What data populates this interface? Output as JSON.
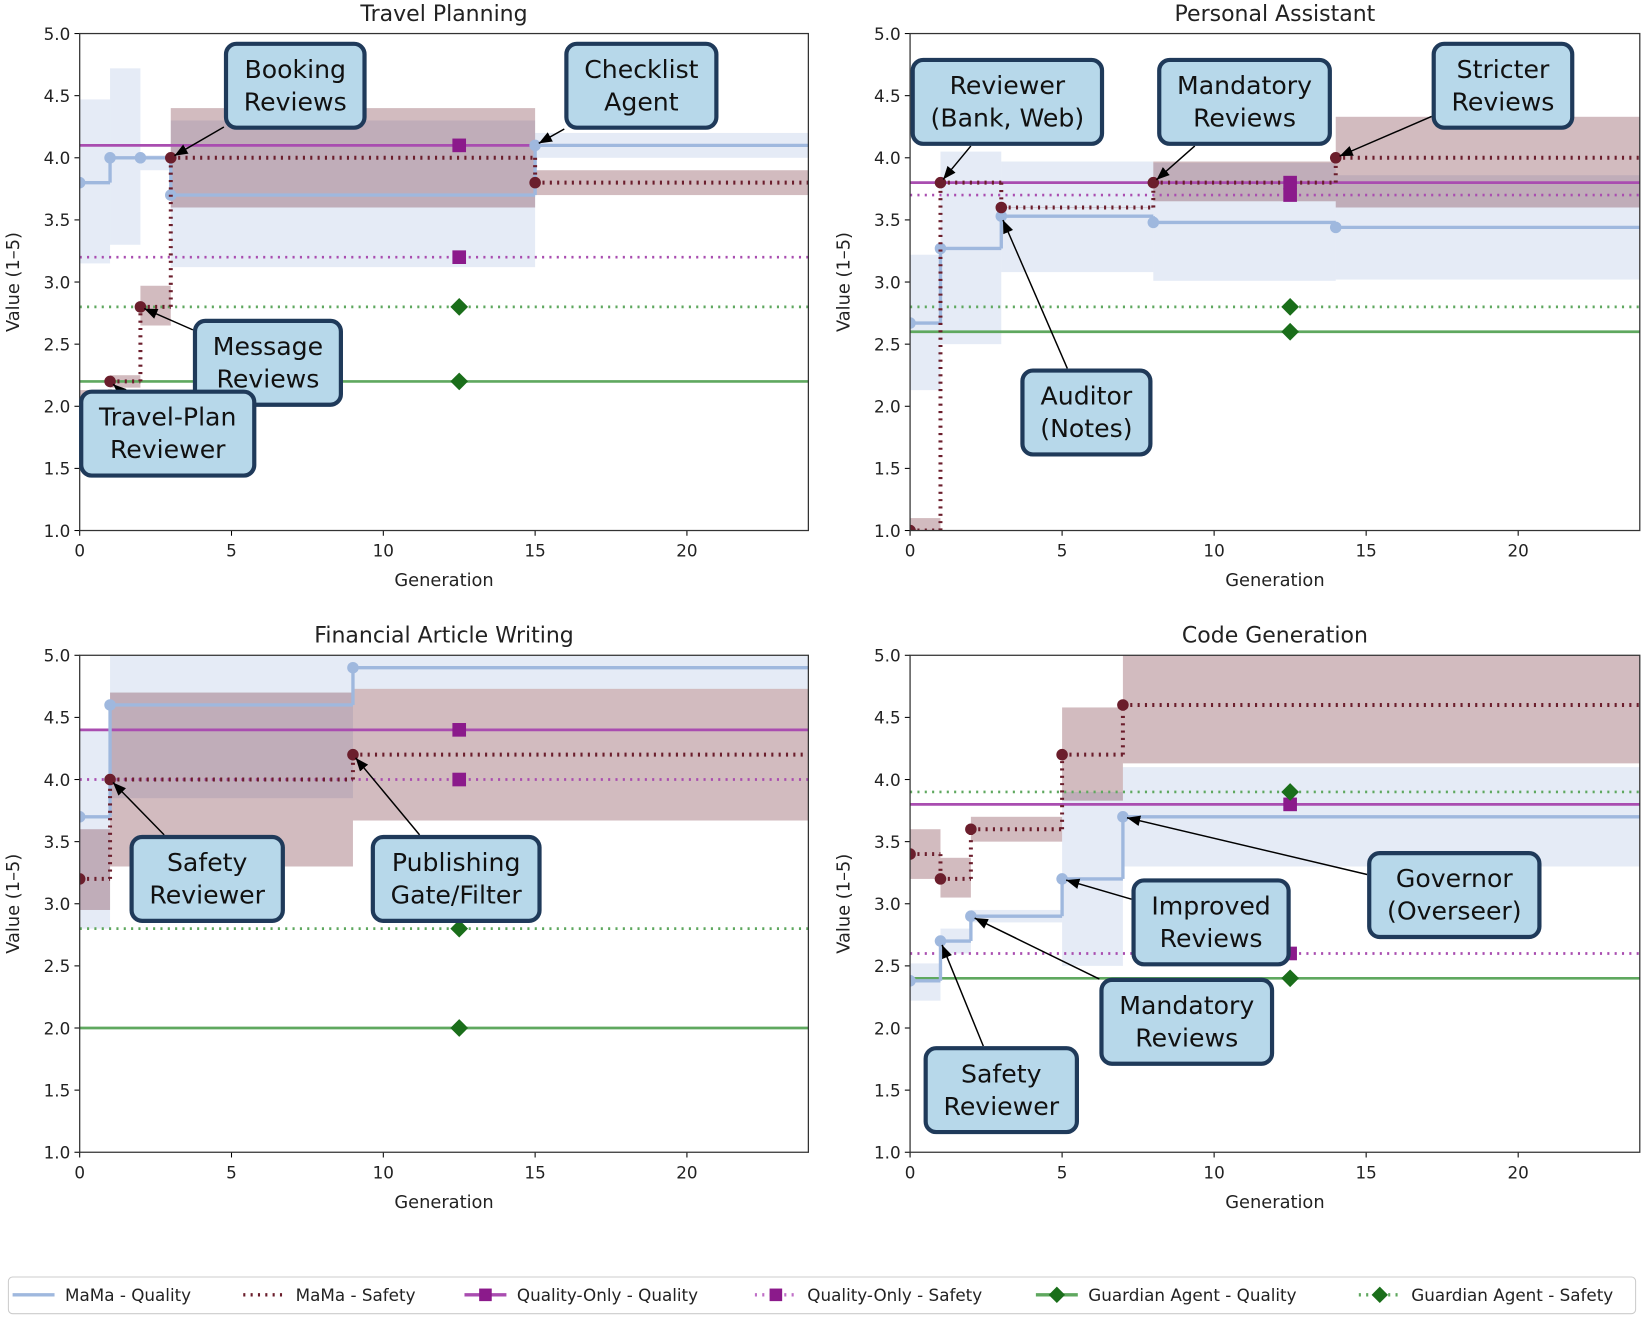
{
  "legend": [
    {
      "name": "MaMa - Quality",
      "color": "#9fb8de",
      "linestyle": "solid"
    },
    {
      "name": "MaMa - Safety",
      "color": "#6b1e2c",
      "linestyle": "dotted"
    },
    {
      "name": "Quality-Only - Quality",
      "color": "#8b1a8b",
      "linestyle": "solid",
      "marker": "square"
    },
    {
      "name": "Quality-Only - Safety",
      "color": "#8b1a8b",
      "linestyle": "dotted",
      "marker": "square"
    },
    {
      "name": "Guardian Agent - Quality",
      "color": "#1a6e1a",
      "linestyle": "solid",
      "marker": "diamond"
    },
    {
      "name": "Guardian Agent - Safety",
      "color": "#1a6e1a",
      "linestyle": "dotted",
      "marker": "diamond"
    }
  ],
  "chart_data": [
    {
      "type": "step",
      "title": "Travel Planning",
      "x_label": "Generation",
      "y_label": "Value (1–5)",
      "xlim": [
        0,
        24
      ],
      "ylim": [
        1,
        5
      ],
      "xticks": [
        0,
        5,
        10,
        15,
        20
      ],
      "yticks": [
        {
          "value": 1,
          "label": "1.0"
        },
        {
          "value": 1.5,
          "label": "1.5"
        },
        {
          "value": 2,
          "label": "2.0"
        },
        {
          "value": 2.5,
          "label": "2.5"
        },
        {
          "value": 3,
          "label": "3.0"
        },
        {
          "value": 3.5,
          "label": "3.5"
        },
        {
          "value": 4,
          "label": "4.0"
        },
        {
          "value": 4.5,
          "label": "4.5"
        },
        {
          "value": 5,
          "label": "5.0"
        }
      ],
      "series": [
        {
          "x": [
            0,
            1,
            2,
            3,
            15
          ],
          "values": [
            3.8,
            4.0,
            4.0,
            3.7,
            4.1
          ],
          "lower": [
            3.15,
            3.3,
            3.9,
            3.12,
            4.0
          ],
          "upper": [
            4.47,
            4.72,
            4.02,
            4.3,
            4.2
          ]
        },
        {
          "x": [
            0,
            1,
            2,
            3,
            15
          ],
          "values": [
            2.0,
            2.2,
            2.8,
            4.0,
            3.8
          ],
          "lower": [
            1.87,
            2.15,
            2.65,
            3.6,
            3.7
          ],
          "upper": [
            2.13,
            2.25,
            2.97,
            4.4,
            3.9
          ]
        },
        {
          "x": [
            12.5
          ],
          "values": [
            4.1
          ]
        },
        {
          "x": [
            12.5
          ],
          "values": [
            3.2
          ]
        },
        {
          "x": [
            12.5
          ],
          "values": [
            2.2
          ]
        },
        {
          "x": [
            12.5
          ],
          "values": [
            2.8
          ]
        }
      ],
      "annotations": [
        {
          "text": [
            "Booking",
            "Reviews"
          ],
          "x": 3,
          "y": 4.0
        },
        {
          "text": [
            "Checklist",
            "Agent"
          ],
          "x": 15,
          "y": 4.1
        },
        {
          "text": [
            "Message",
            "Reviews"
          ],
          "x": 2,
          "y": 2.8
        },
        {
          "text": [
            "Travel-Plan",
            "Reviewer"
          ],
          "x": 1,
          "y": 2.2
        }
      ]
    },
    {
      "type": "step",
      "title": "Personal Assistant",
      "x_label": "Generation",
      "y_label": "Value (1–5)",
      "xlim": [
        0,
        24
      ],
      "ylim": [
        1,
        5
      ],
      "xticks": [
        0,
        5,
        10,
        15,
        20
      ],
      "yticks": [
        {
          "value": 1,
          "label": "1.0"
        },
        {
          "value": 1.5,
          "label": "1.5"
        },
        {
          "value": 2,
          "label": "2.0"
        },
        {
          "value": 2.5,
          "label": "2.5"
        },
        {
          "value": 3,
          "label": "3.0"
        },
        {
          "value": 3.5,
          "label": "3.5"
        },
        {
          "value": 4,
          "label": "4.0"
        },
        {
          "value": 4.5,
          "label": "4.5"
        },
        {
          "value": 5,
          "label": "5.0"
        }
      ],
      "series": [
        {
          "x": [
            0,
            1,
            3,
            8,
            14
          ],
          "values": [
            2.67,
            3.27,
            3.53,
            3.48,
            3.44
          ],
          "lower": [
            2.13,
            2.5,
            3.08,
            3.01,
            3.02
          ],
          "upper": [
            3.22,
            4.05,
            3.97,
            3.96,
            3.86
          ]
        },
        {
          "x": [
            0,
            1,
            3,
            8,
            14
          ],
          "values": [
            1.0,
            3.8,
            3.6,
            3.8,
            4.0
          ],
          "lower": [
            1.0,
            3.8,
            3.6,
            3.65,
            3.6
          ],
          "upper": [
            1.1,
            3.8,
            3.6,
            3.97,
            4.33
          ]
        },
        {
          "x": [
            12.5
          ],
          "values": [
            3.8
          ]
        },
        {
          "x": [
            12.5
          ],
          "values": [
            3.7
          ]
        },
        {
          "x": [
            12.5
          ],
          "values": [
            2.6
          ]
        },
        {
          "x": [
            12.5
          ],
          "values": [
            2.8
          ]
        }
      ],
      "annotations": [
        {
          "text": [
            "Reviewer",
            "(Bank, Web)"
          ],
          "x": 1,
          "y": 3.8
        },
        {
          "text": [
            "Mandatory",
            "Reviews"
          ],
          "x": 8,
          "y": 3.8
        },
        {
          "text": [
            "Stricter",
            "Reviews"
          ],
          "x": 14,
          "y": 4.0
        },
        {
          "text": [
            "Auditor",
            "(Notes)"
          ],
          "x": 3,
          "y": 3.53
        }
      ]
    },
    {
      "type": "step",
      "title": "Financial Article Writing",
      "x_label": "Generation",
      "y_label": "Value (1–5)",
      "xlim": [
        0,
        24
      ],
      "ylim": [
        1,
        5
      ],
      "xticks": [
        0,
        5,
        10,
        15,
        20
      ],
      "yticks": [
        {
          "value": 1,
          "label": "1.0"
        },
        {
          "value": 1.5,
          "label": "1.5"
        },
        {
          "value": 2,
          "label": "2.0"
        },
        {
          "value": 2.5,
          "label": "2.5"
        },
        {
          "value": 3,
          "label": "3.0"
        },
        {
          "value": 3.5,
          "label": "3.5"
        },
        {
          "value": 4,
          "label": "4.0"
        },
        {
          "value": 4.5,
          "label": "4.5"
        },
        {
          "value": 5,
          "label": "5.0"
        }
      ],
      "series": [
        {
          "x": [
            0,
            1,
            9
          ],
          "values": [
            3.7,
            4.6,
            4.9
          ],
          "lower": [
            2.8,
            3.85,
            4.73
          ],
          "upper": [
            4.4,
            5.0,
            5.0
          ]
        },
        {
          "x": [
            0,
            1,
            9
          ],
          "values": [
            3.2,
            4.0,
            4.2
          ],
          "lower": [
            2.95,
            3.3,
            3.67
          ],
          "upper": [
            3.6,
            4.7,
            4.73
          ]
        },
        {
          "x": [
            12.5
          ],
          "values": [
            4.4
          ]
        },
        {
          "x": [
            12.5
          ],
          "values": [
            4.0
          ]
        },
        {
          "x": [
            12.5
          ],
          "values": [
            2.0
          ]
        },
        {
          "x": [
            12.5
          ],
          "values": [
            2.8
          ]
        }
      ],
      "annotations": [
        {
          "text": [
            "Safety",
            "Reviewer"
          ],
          "x": 1,
          "y": 4.0
        },
        {
          "text": [
            "Publishing",
            "Gate/Filter"
          ],
          "x": 9,
          "y": 4.2
        }
      ]
    },
    {
      "type": "step",
      "title": "Code Generation",
      "x_label": "Generation",
      "y_label": "Value (1–5)",
      "xlim": [
        0,
        24
      ],
      "ylim": [
        1,
        5
      ],
      "xticks": [
        0,
        5,
        10,
        15,
        20
      ],
      "yticks": [
        {
          "value": 1,
          "label": "1.0"
        },
        {
          "value": 1.5,
          "label": "1.5"
        },
        {
          "value": 2,
          "label": "2.0"
        },
        {
          "value": 2.5,
          "label": "2.5"
        },
        {
          "value": 3,
          "label": "3.0"
        },
        {
          "value": 3.5,
          "label": "3.5"
        },
        {
          "value": 4,
          "label": "4.0"
        },
        {
          "value": 4.5,
          "label": "4.5"
        },
        {
          "value": 5,
          "label": "5.0"
        }
      ],
      "series": [
        {
          "x": [
            0,
            1,
            2,
            5,
            7
          ],
          "values": [
            2.38,
            2.7,
            2.9,
            3.2,
            3.7
          ],
          "lower": [
            2.22,
            2.6,
            2.85,
            2.5,
            3.3
          ],
          "upper": [
            2.52,
            2.8,
            2.95,
            3.9,
            4.1
          ]
        },
        {
          "x": [
            0,
            1,
            2,
            5,
            7
          ],
          "values": [
            3.4,
            3.2,
            3.6,
            4.2,
            4.6
          ],
          "lower": [
            3.2,
            3.05,
            3.5,
            3.83,
            4.13
          ],
          "upper": [
            3.6,
            3.37,
            3.7,
            4.58,
            5.0
          ]
        },
        {
          "x": [
            12.5
          ],
          "values": [
            3.8
          ]
        },
        {
          "x": [
            12.5
          ],
          "values": [
            2.6
          ]
        },
        {
          "x": [
            12.5
          ],
          "values": [
            2.4
          ]
        },
        {
          "x": [
            12.5
          ],
          "values": [
            3.9
          ]
        }
      ],
      "annotations": [
        {
          "text": [
            "Governor",
            "(Overseer)"
          ],
          "x": 7,
          "y": 3.7
        },
        {
          "text": [
            "Improved",
            "Reviews"
          ],
          "x": 5,
          "y": 3.2
        },
        {
          "text": [
            "Mandatory",
            "Reviews"
          ],
          "x": 2,
          "y": 2.9
        },
        {
          "text": [
            "Safety",
            "Reviewer"
          ],
          "x": 1,
          "y": 2.7
        }
      ]
    }
  ]
}
